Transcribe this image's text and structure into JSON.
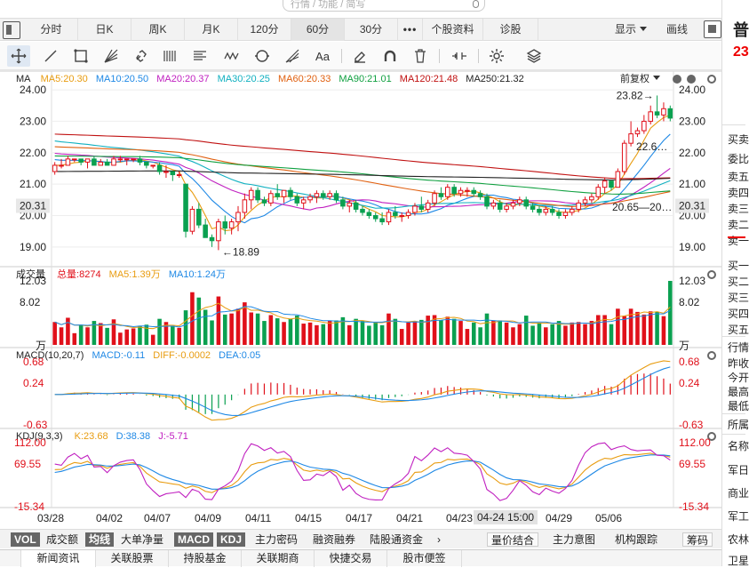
{
  "search": {
    "placeholder": "行情 / 功能 / 简写"
  },
  "period_tabs": [
    {
      "label": "分时"
    },
    {
      "label": "日K"
    },
    {
      "label": "周K"
    },
    {
      "label": "月K"
    },
    {
      "label": "120分"
    },
    {
      "label": "60分",
      "active": true
    },
    {
      "label": "30分"
    },
    {
      "label": "•••"
    },
    {
      "label": "个股资料"
    },
    {
      "label": "诊股"
    }
  ],
  "top_right": {
    "display_label": "显示",
    "draw_label": "画线"
  },
  "tools": [
    "crosshair-icon",
    "line-icon",
    "rect-icon",
    "fan-icon",
    "link-icon",
    "parallel-icon",
    "channel-icon",
    "wave-icon",
    "cycle-icon",
    "gann-icon",
    "text-icon",
    "eraser-icon",
    "magnet-icon",
    "trash-icon",
    "fold-icon",
    "settings-icon",
    "layers-icon"
  ],
  "ma_legend": {
    "title": "MA",
    "items": [
      {
        "label": "MA5:20.30",
        "color": "#e89c10"
      },
      {
        "label": "MA10:20.50",
        "color": "#1e88e5"
      },
      {
        "label": "MA20:20.37",
        "color": "#c020c0"
      },
      {
        "label": "MA30:20.25",
        "color": "#10b0c0"
      },
      {
        "label": "MA60:20.33",
        "color": "#e06010"
      },
      {
        "label": "MA90:21.01",
        "color": "#10a040"
      },
      {
        "label": "MA120:21.48",
        "color": "#c01010"
      },
      {
        "label": "MA250:21.32",
        "color": "#222222"
      }
    ],
    "restore_label": "前复权"
  },
  "price_axis": {
    "ticks": [
      "24.00",
      "23.00",
      "22.00",
      "21.00",
      "20.00",
      "19.00"
    ],
    "current": "20.31"
  },
  "annotations": {
    "high": "23.82",
    "low": "18.89",
    "ma_end_a": "22.6…",
    "ma_end_b": "20.65",
    "ma_end_c": "20…"
  },
  "volume_legend": {
    "title": "成交量",
    "total": "总量:8274",
    "ma5": "MA5:1.39万",
    "ma10": "MA10:1.24万",
    "ticks": [
      "12.03",
      "8.02"
    ],
    "unit": "万"
  },
  "macd_legend": {
    "title": "MACD(10,20,7)",
    "macd": "MACD:-0.11",
    "diff": "DIFF:-0.0002",
    "dea": "DEA:0.05",
    "ticks": [
      "0.68",
      "0.24",
      "-0.63"
    ]
  },
  "kdj_legend": {
    "title": "KDJ(9,3,3)",
    "k": "K:23.68",
    "d": "D:38.38",
    "j": "J:-5.71",
    "ticks": [
      "112.00",
      "69.55",
      "-15.34"
    ]
  },
  "x_labels": [
    "03/28",
    "04/02",
    "04/07",
    "04/09",
    "04/11",
    "04/15",
    "04/17",
    "04/21",
    "04/23",
    "04-24 15:00",
    "04/29",
    "05/06"
  ],
  "indicator_tabs": [
    {
      "label": "VOL",
      "style": "dark"
    },
    {
      "label": "成交额"
    },
    {
      "label": "均线",
      "style": "dark"
    },
    {
      "label": "大单净量"
    },
    {
      "label": "MACD",
      "style": "dark"
    },
    {
      "label": "KDJ",
      "style": "dark"
    },
    {
      "label": "主力密码"
    },
    {
      "label": "融资融券"
    },
    {
      "label": "陆股通资金"
    },
    {
      "label": "›"
    },
    {
      "label": "量价结合",
      "style": "box"
    },
    {
      "label": "主力意图"
    },
    {
      "label": "机构跟踪"
    },
    {
      "label": "筹码",
      "style": "box"
    }
  ],
  "bottom_tabs": [
    {
      "label": "新闻资讯",
      "active": true
    },
    {
      "label": "关联股票"
    },
    {
      "label": "持股基金"
    },
    {
      "label": "关联期商"
    },
    {
      "label": "快捷交易"
    },
    {
      "label": "股市便签"
    }
  ],
  "right_panel": {
    "name": "普",
    "price": "23",
    "labels": [
      "买卖",
      "委比",
      "卖五",
      "卖四",
      "卖三",
      "卖二",
      "卖一",
      "买一",
      "买二",
      "买三",
      "买四",
      "买五",
      "行情",
      "昨收",
      "今开",
      "最高",
      "最低",
      "所属",
      "名称",
      "军日",
      "商业",
      "军工",
      "农林",
      "卫星"
    ]
  },
  "colors": {
    "up": "#e0101a",
    "down": "#0aa050",
    "bg": "#ffffff"
  },
  "chart_data": {
    "type": "candlestick",
    "title": "",
    "x_labels": [
      "03/28",
      "04/02",
      "04/07",
      "04/09",
      "04/11",
      "04/15",
      "04/17",
      "04/21",
      "04/23",
      "04-24 15:00",
      "04/29",
      "05/06"
    ],
    "ylim": [
      18.6,
      24.2
    ],
    "candles": [
      [
        21.4,
        21.7,
        21.3,
        21.6
      ],
      [
        21.6,
        21.8,
        21.5,
        21.6
      ],
      [
        21.6,
        21.9,
        21.6,
        21.8
      ],
      [
        21.8,
        21.8,
        21.7,
        21.8
      ],
      [
        21.8,
        21.8,
        21.6,
        21.7
      ],
      [
        21.7,
        21.8,
        21.5,
        21.8
      ],
      [
        21.8,
        21.9,
        21.6,
        21.6
      ],
      [
        21.6,
        21.8,
        21.6,
        21.7
      ],
      [
        21.7,
        21.8,
        21.6,
        21.6
      ],
      [
        21.6,
        21.9,
        21.6,
        21.8
      ],
      [
        21.8,
        21.9,
        21.7,
        21.8
      ],
      [
        21.8,
        21.8,
        21.6,
        21.8
      ],
      [
        21.8,
        21.8,
        21.7,
        21.8
      ],
      [
        21.8,
        21.9,
        21.6,
        21.7
      ],
      [
        21.7,
        21.7,
        21.5,
        21.6
      ],
      [
        21.6,
        21.6,
        21.5,
        21.6
      ],
      [
        21.6,
        21.7,
        21.3,
        21.4
      ],
      [
        21.4,
        21.6,
        21.2,
        21.4
      ],
      [
        21.4,
        21.4,
        21.1,
        21.3
      ],
      [
        21.3,
        21.4,
        21.2,
        21.3
      ],
      [
        21.0,
        21.0,
        19.3,
        19.5
      ],
      [
        19.5,
        20.3,
        19.4,
        20.2
      ],
      [
        20.2,
        20.4,
        19.6,
        19.7
      ],
      [
        19.7,
        19.9,
        19.3,
        19.3
      ],
      [
        19.3,
        19.4,
        19.0,
        19.2
      ],
      [
        19.2,
        19.9,
        18.9,
        19.8
      ],
      [
        19.8,
        20.0,
        19.4,
        19.6
      ],
      [
        19.6,
        19.9,
        19.4,
        19.8
      ],
      [
        19.8,
        20.3,
        19.5,
        20.1
      ],
      [
        20.1,
        20.7,
        19.9,
        20.5
      ],
      [
        20.5,
        20.9,
        20.2,
        20.8
      ],
      [
        20.8,
        20.9,
        20.4,
        20.5
      ],
      [
        20.5,
        20.6,
        20.3,
        20.4
      ],
      [
        20.4,
        20.8,
        20.3,
        20.7
      ],
      [
        20.7,
        21.0,
        20.5,
        20.6
      ],
      [
        20.6,
        20.8,
        20.4,
        20.8
      ],
      [
        20.8,
        20.9,
        20.5,
        20.6
      ],
      [
        20.6,
        20.7,
        20.3,
        20.4
      ],
      [
        20.4,
        20.6,
        20.2,
        20.5
      ],
      [
        20.5,
        20.7,
        20.4,
        20.6
      ],
      [
        20.6,
        20.8,
        20.4,
        20.7
      ],
      [
        20.7,
        20.8,
        20.5,
        20.6
      ],
      [
        20.6,
        20.8,
        20.5,
        20.7
      ],
      [
        20.7,
        20.8,
        20.4,
        20.5
      ],
      [
        20.5,
        20.6,
        20.2,
        20.3
      ],
      [
        20.3,
        20.5,
        20.1,
        20.4
      ],
      [
        20.4,
        20.5,
        20.1,
        20.2
      ],
      [
        20.2,
        20.3,
        20.0,
        20.1
      ],
      [
        20.1,
        20.2,
        19.9,
        20.0
      ],
      [
        20.0,
        20.1,
        19.8,
        19.9
      ],
      [
        19.9,
        20.1,
        19.7,
        19.8
      ],
      [
        19.8,
        20.2,
        19.7,
        20.1
      ],
      [
        20.1,
        20.3,
        19.9,
        20.0
      ],
      [
        20.0,
        20.1,
        19.8,
        20.0
      ],
      [
        20.0,
        20.2,
        19.9,
        20.1
      ],
      [
        20.1,
        20.4,
        20.0,
        20.3
      ],
      [
        20.3,
        20.6,
        20.1,
        20.2
      ],
      [
        20.2,
        20.5,
        20.1,
        20.4
      ],
      [
        20.4,
        20.8,
        20.3,
        20.7
      ],
      [
        20.7,
        20.9,
        20.5,
        20.6
      ],
      [
        20.6,
        21.0,
        20.5,
        20.9
      ],
      [
        20.9,
        21.0,
        20.6,
        20.7
      ],
      [
        20.7,
        20.9,
        20.6,
        20.8
      ],
      [
        20.8,
        20.9,
        20.6,
        20.8
      ],
      [
        20.8,
        20.9,
        20.6,
        20.7
      ],
      [
        20.7,
        20.8,
        20.5,
        20.6
      ],
      [
        20.6,
        20.7,
        20.2,
        20.3
      ],
      [
        20.3,
        20.5,
        20.2,
        20.4
      ],
      [
        20.4,
        20.5,
        20.1,
        20.2
      ],
      [
        20.2,
        20.4,
        20.1,
        20.3
      ],
      [
        20.3,
        20.5,
        20.2,
        20.4
      ],
      [
        20.4,
        20.6,
        20.3,
        20.5
      ],
      [
        20.5,
        20.6,
        20.2,
        20.3
      ],
      [
        20.3,
        20.4,
        20.1,
        20.2
      ],
      [
        20.2,
        20.3,
        20.0,
        20.1
      ],
      [
        20.1,
        20.3,
        20.0,
        20.2
      ],
      [
        20.2,
        20.3,
        20.0,
        20.1
      ],
      [
        20.1,
        20.2,
        19.9,
        20.0
      ],
      [
        20.0,
        20.2,
        19.9,
        20.1
      ],
      [
        20.1,
        20.3,
        20.0,
        20.2
      ],
      [
        20.2,
        20.5,
        20.1,
        20.4
      ],
      [
        20.4,
        20.6,
        20.3,
        20.5
      ],
      [
        20.5,
        20.7,
        20.4,
        20.6
      ],
      [
        20.6,
        21.0,
        20.5,
        20.9
      ],
      [
        20.9,
        21.2,
        20.7,
        21.1
      ],
      [
        21.1,
        21.1,
        20.8,
        20.9
      ],
      [
        20.9,
        21.5,
        20.9,
        21.4
      ],
      [
        21.4,
        22.4,
        21.3,
        22.3
      ],
      [
        22.3,
        23.0,
        22.2,
        22.6
      ],
      [
        22.6,
        22.8,
        22.5,
        22.7
      ],
      [
        22.7,
        23.2,
        22.6,
        23.0
      ],
      [
        23.0,
        23.5,
        22.9,
        23.3
      ],
      [
        23.3,
        23.82,
        23.1,
        23.2
      ],
      [
        23.2,
        23.6,
        23.0,
        23.4
      ],
      [
        23.4,
        23.5,
        23.0,
        23.1
      ]
    ],
    "volume_ylim": [
      0,
      12.03
    ],
    "volume_unit": "万",
    "macd_ylim": [
      -0.63,
      0.68
    ],
    "kdj_ylim": [
      -15.34,
      112.0
    ]
  }
}
